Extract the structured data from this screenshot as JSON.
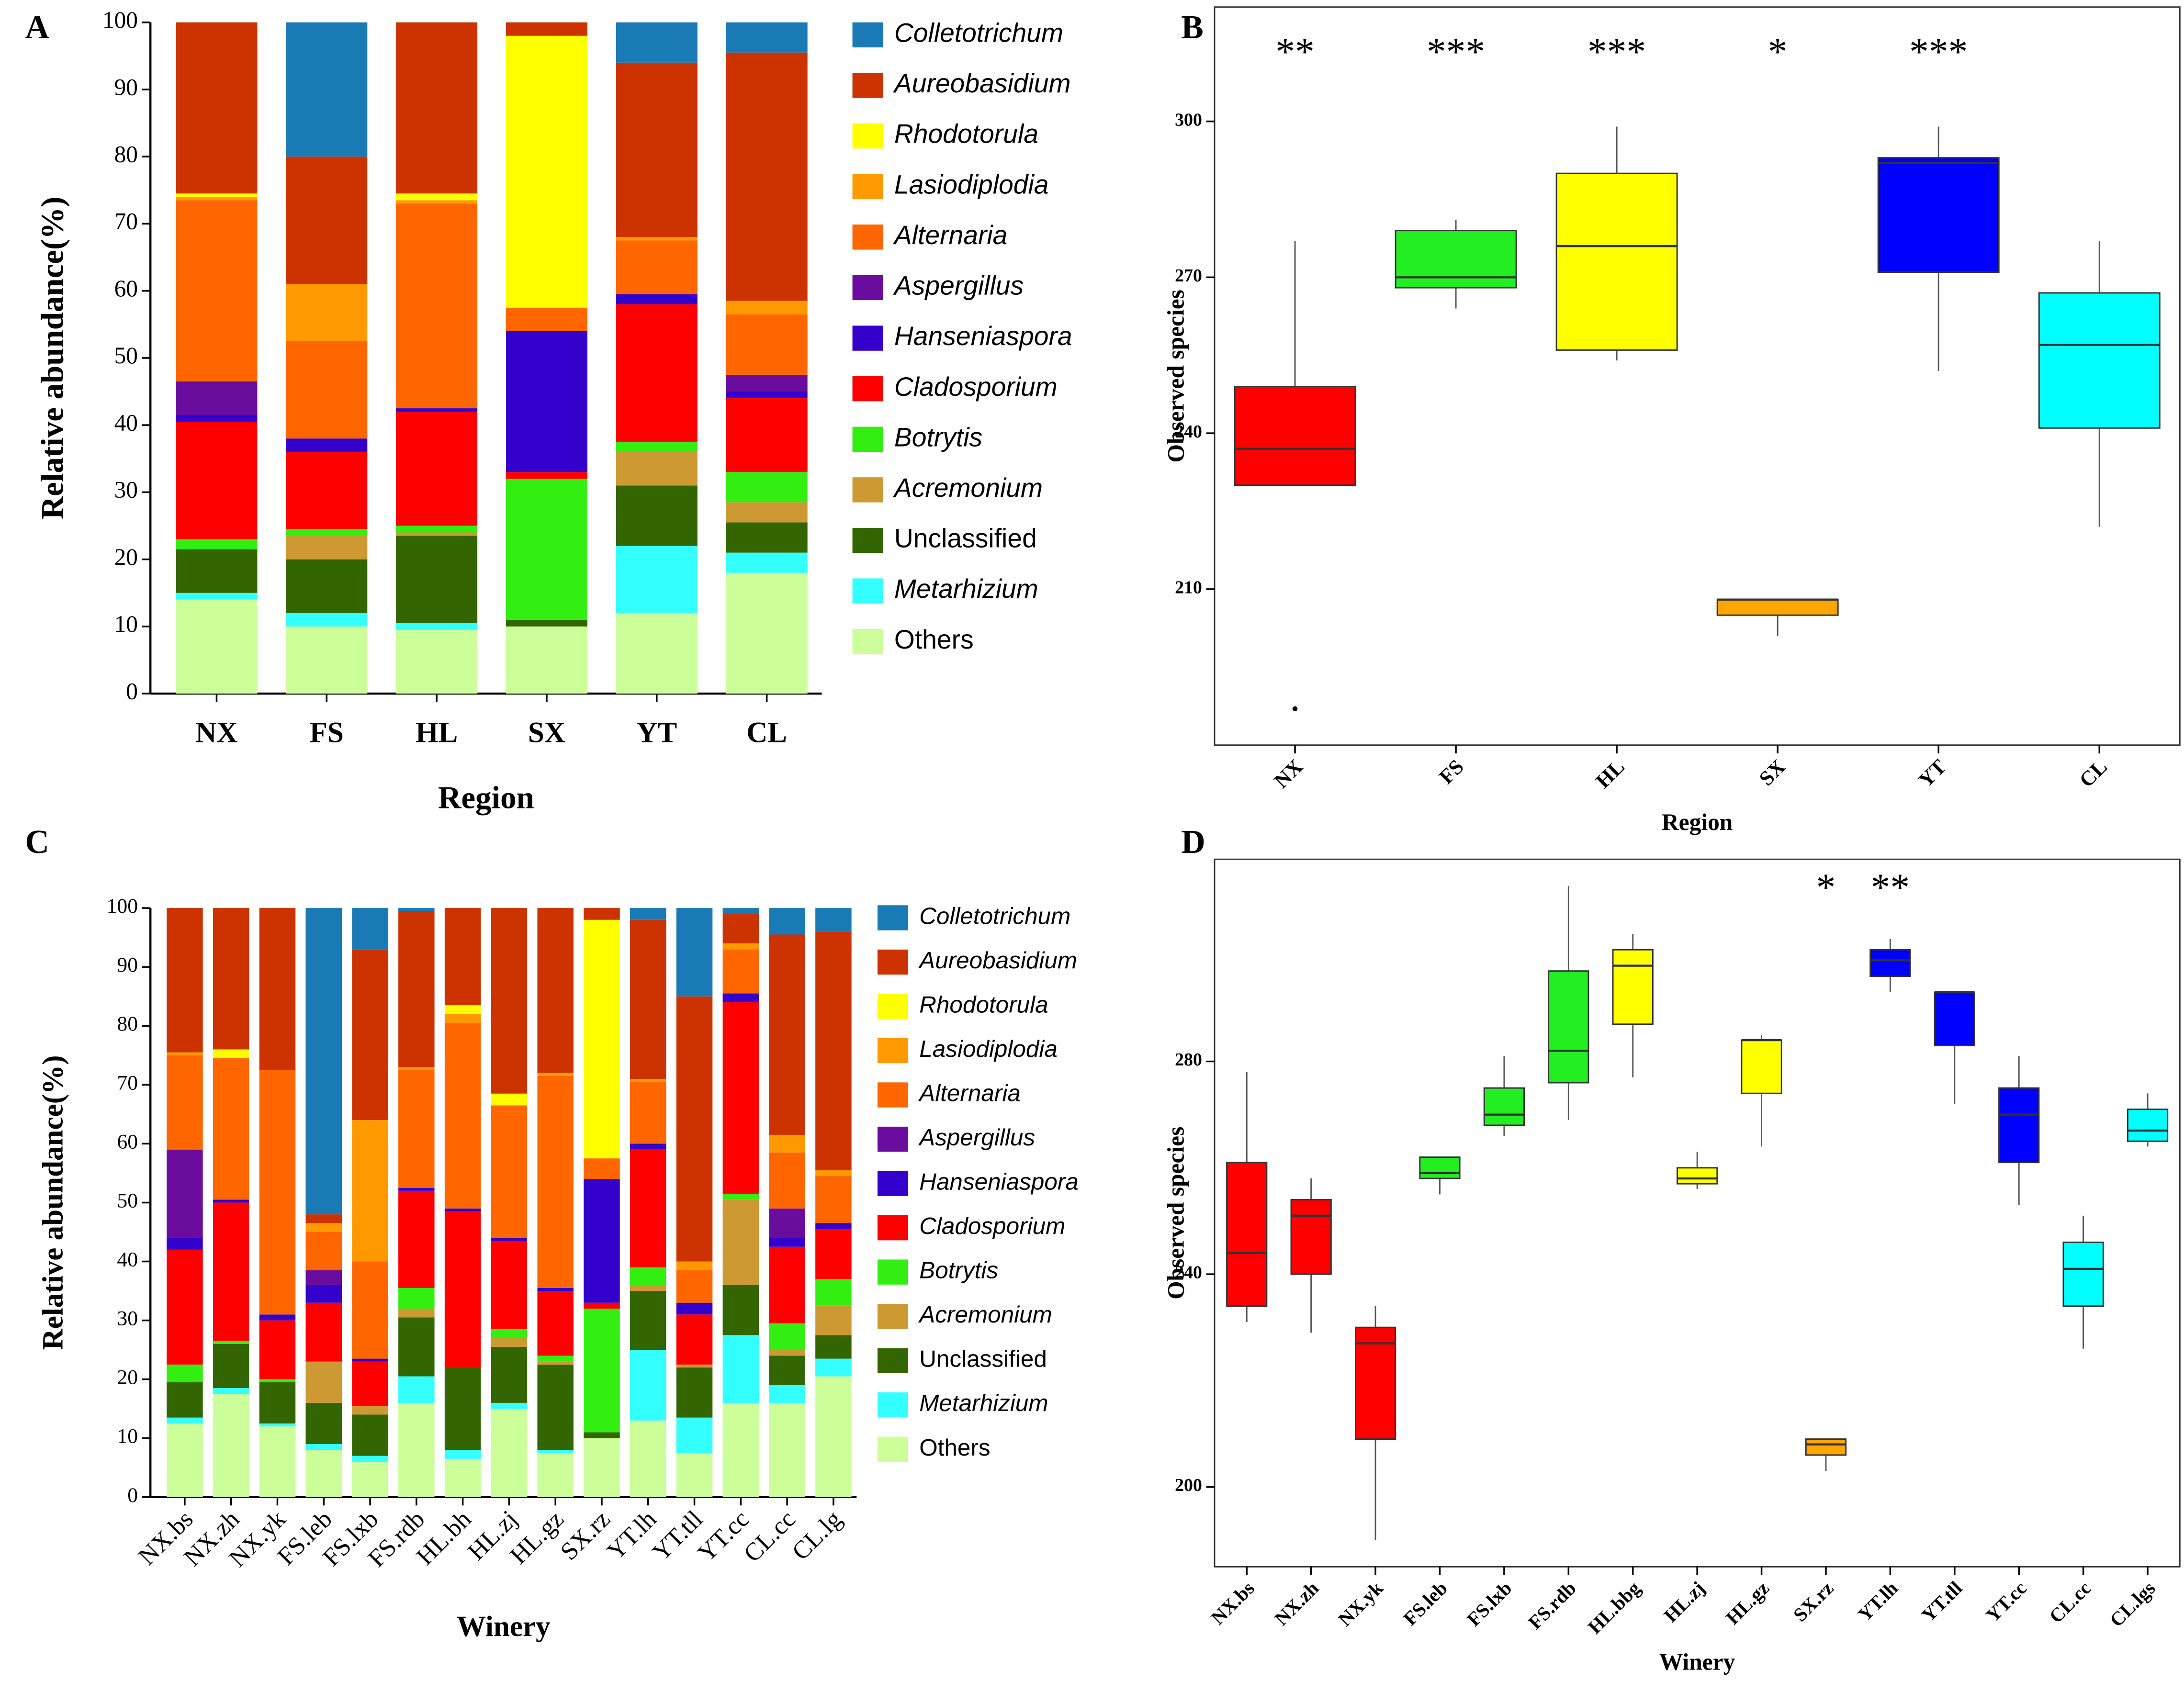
{
  "chart_data": [
    {
      "type": "stacked_bar",
      "label": "A",
      "ylabel": "Relative abundance(%)",
      "xlabel": "Region",
      "categories": [
        "NX",
        "FS",
        "HL",
        "SX",
        "YT",
        "CL"
      ],
      "ylim": [
        0,
        100
      ],
      "yticks": [
        0,
        10,
        20,
        30,
        40,
        50,
        60,
        70,
        80,
        90,
        100
      ],
      "series": [
        {
          "name": "Colletotrichum",
          "italic": true,
          "color": "#1a7ab5",
          "values": [
            0,
            20,
            0,
            0,
            6,
            4.5
          ]
        },
        {
          "name": "Aureobasidium",
          "italic": true,
          "color": "#cc3300",
          "values": [
            25.5,
            19,
            25.5,
            2,
            26,
            37
          ]
        },
        {
          "name": "Rhodotorula",
          "italic": true,
          "color": "#ffff00",
          "values": [
            0.5,
            0,
            1,
            40.5,
            0,
            0
          ]
        },
        {
          "name": "Lasiodiplodia",
          "italic": true,
          "color": "#ff9900",
          "values": [
            0.5,
            8.5,
            0.5,
            0,
            0.5,
            2
          ]
        },
        {
          "name": "Alternaria",
          "italic": true,
          "color": "#ff6600",
          "values": [
            27,
            14.5,
            30.5,
            3.5,
            8,
            9
          ]
        },
        {
          "name": "Aspergillus",
          "italic": true,
          "color": "#6a0d9e",
          "values": [
            5,
            0,
            0,
            0,
            0,
            2.5
          ]
        },
        {
          "name": "Hanseniaspora",
          "italic": true,
          "color": "#3300cc",
          "values": [
            1,
            2,
            0.5,
            21,
            1.5,
            1
          ]
        },
        {
          "name": "Cladosporium",
          "italic": true,
          "color": "#ff0000",
          "values": [
            17.5,
            11.5,
            17,
            1,
            20.5,
            11
          ]
        },
        {
          "name": "Botrytis",
          "italic": true,
          "color": "#33ee11",
          "values": [
            1.5,
            1,
            1,
            21,
            1.5,
            4.5
          ]
        },
        {
          "name": "Acremonium",
          "italic": true,
          "color": "#cc9933",
          "values": [
            0,
            3.5,
            0.5,
            0,
            5,
            3
          ]
        },
        {
          "name": "Unclassified",
          "italic": false,
          "color": "#336600",
          "values": [
            6.5,
            8,
            13,
            1,
            9,
            4.5
          ]
        },
        {
          "name": "Metarhizium",
          "italic": true,
          "color": "#33ffff",
          "values": [
            1,
            2,
            1,
            0,
            10,
            3
          ]
        },
        {
          "name": "Others",
          "italic": false,
          "color": "#ccff99",
          "values": [
            14,
            10,
            9.5,
            10,
            12,
            18
          ]
        }
      ]
    },
    {
      "type": "box",
      "label": "B",
      "ylabel": "Observed species",
      "xlabel": "Region",
      "categories": [
        "NX",
        "FS",
        "HL",
        "SX",
        "YT",
        "CL"
      ],
      "ylim": [
        180,
        322
      ],
      "yticks": [
        210,
        240,
        270,
        300
      ],
      "colors": [
        "#ff0000",
        "#22ee22",
        "#ffff00",
        "#ffa500",
        "#0000ff",
        "#00ffff"
      ],
      "boxes": [
        {
          "min": 230,
          "q1": 230,
          "median": 237,
          "q3": 249,
          "max": 277,
          "outliers": [
            187
          ]
        },
        {
          "min": 264,
          "q1": 268,
          "median": 270,
          "q3": 279,
          "max": 281,
          "outliers": []
        },
        {
          "min": 254,
          "q1": 256,
          "median": 276,
          "q3": 290,
          "max": 299,
          "outliers": []
        },
        {
          "min": 201,
          "q1": 205,
          "median": 208,
          "q3": 208,
          "max": 208,
          "outliers": []
        },
        {
          "min": 252,
          "q1": 271,
          "median": 292,
          "q3": 293,
          "max": 299,
          "outliers": []
        },
        {
          "min": 222,
          "q1": 241,
          "median": 257,
          "q3": 267,
          "max": 277,
          "outliers": []
        }
      ],
      "annotations": [
        {
          "text": "**",
          "category": "NX"
        },
        {
          "text": "***",
          "category": "FS"
        },
        {
          "text": "***",
          "category": "HL"
        },
        {
          "text": "*",
          "category": "SX"
        },
        {
          "text": "***",
          "category": "YT"
        }
      ]
    },
    {
      "type": "stacked_bar",
      "label": "C",
      "ylabel": "Relative abundance(%)",
      "xlabel": "Winery",
      "categories": [
        "NX.bs",
        "NX.zh",
        "NX.yk",
        "FS.leb",
        "FS.lxb",
        "FS.rdb",
        "HL.bh",
        "HL.zj",
        "HL.gz",
        "SX.rz",
        "YT.lh",
        "YT.tll",
        "YT.cc",
        "CL.cc",
        "CL.lg"
      ],
      "ylim": [
        0,
        100
      ],
      "yticks": [
        0,
        10,
        20,
        30,
        40,
        50,
        60,
        70,
        80,
        90,
        100
      ],
      "series": [
        {
          "name": "Colletotrichum",
          "italic": true,
          "color": "#1a7ab5",
          "values": [
            0,
            0,
            0,
            52,
            7,
            0.5,
            0,
            0,
            0,
            0,
            2,
            15,
            1,
            4.5,
            4
          ]
        },
        {
          "name": "Aureobasidium",
          "italic": true,
          "color": "#cc3300",
          "values": [
            24.5,
            24,
            27.5,
            1.5,
            29,
            26.5,
            16.5,
            31.5,
            28,
            2,
            27,
            45,
            5,
            34,
            40.5
          ]
        },
        {
          "name": "Rhodotorula",
          "italic": true,
          "color": "#ffff00",
          "values": [
            0,
            1.5,
            0,
            0,
            0,
            0,
            1.5,
            2,
            0,
            40.5,
            0,
            0,
            0,
            0,
            0
          ]
        },
        {
          "name": "Lasiodiplodia",
          "italic": true,
          "color": "#ff9900",
          "values": [
            0.5,
            0,
            0,
            1.5,
            24,
            0.5,
            1.5,
            0,
            0.5,
            0,
            0.5,
            1.5,
            1,
            3,
            1
          ]
        },
        {
          "name": "Alternaria",
          "italic": true,
          "color": "#ff6600",
          "values": [
            16,
            24,
            41.5,
            6.5,
            16.5,
            20,
            31.5,
            22.5,
            36,
            3.5,
            10.5,
            5.5,
            7.5,
            9.5,
            8
          ]
        },
        {
          "name": "Aspergillus",
          "italic": true,
          "color": "#6a0d9e",
          "values": [
            15,
            0,
            0,
            2.5,
            0,
            0,
            0,
            0,
            0,
            0,
            0,
            0,
            0,
            5,
            0
          ]
        },
        {
          "name": "Hanseniaspora",
          "italic": true,
          "color": "#3300cc",
          "values": [
            2,
            0.5,
            1,
            3,
            0.5,
            0.5,
            0.5,
            0.5,
            0.5,
            21,
            1,
            2,
            1.5,
            1.5,
            1
          ]
        },
        {
          "name": "Cladosporium",
          "italic": true,
          "color": "#ff0000",
          "values": [
            19.5,
            23.5,
            10,
            10,
            7.5,
            16.5,
            26.5,
            15,
            11,
            1,
            20,
            8.5,
            32.5,
            13,
            8.5
          ]
        },
        {
          "name": "Botrytis",
          "italic": true,
          "color": "#33ee11",
          "values": [
            3,
            0.5,
            0.5,
            0,
            0,
            3.5,
            0,
            1.5,
            1,
            21,
            3,
            0,
            1,
            4.5,
            4.5
          ]
        },
        {
          "name": "Acremonium",
          "italic": true,
          "color": "#cc9933",
          "values": [
            0,
            0,
            0,
            7,
            1.5,
            1.5,
            0,
            1.5,
            0.5,
            0,
            1,
            0.5,
            14.5,
            1,
            5
          ]
        },
        {
          "name": "Unclassified",
          "italic": false,
          "color": "#336600",
          "values": [
            6,
            7.5,
            7,
            7,
            7,
            10,
            14,
            9.5,
            14.5,
            1,
            10,
            8.5,
            8.5,
            5,
            4
          ]
        },
        {
          "name": "Metarhizium",
          "italic": true,
          "color": "#33ffff",
          "values": [
            1,
            1,
            0.5,
            1,
            1,
            4.5,
            1.5,
            1,
            0.5,
            0,
            12,
            6,
            11.5,
            3,
            3
          ]
        },
        {
          "name": "Others",
          "italic": false,
          "color": "#ccff99",
          "values": [
            12.5,
            17.5,
            12,
            8,
            6,
            16,
            6.5,
            15,
            7.5,
            10,
            13,
            7.5,
            16,
            16,
            20.5
          ]
        }
      ]
    },
    {
      "type": "box",
      "label": "D",
      "ylabel": "Observed species",
      "xlabel": "Winery",
      "categories": [
        "NX.bs",
        "NX.zh",
        "NX.yk",
        "FS.leb",
        "FS.lxb",
        "FS.rdb",
        "HL.bbg",
        "HL.zj",
        "HL.gz",
        "SX.rz",
        "YT.lh",
        "YT.tll",
        "YT.cc",
        "CL.cc",
        "CL.lgs"
      ],
      "ylim": [
        185,
        318
      ],
      "yticks": [
        200,
        240,
        280
      ],
      "colors": [
        "#ff0000",
        "#ff0000",
        "#ff0000",
        "#22ee22",
        "#22ee22",
        "#22ee22",
        "#ffff00",
        "#ffff00",
        "#ffff00",
        "#ffa500",
        "#0000ff",
        "#0000ff",
        "#0000ff",
        "#00ffff",
        "#00ffff"
      ],
      "boxes": [
        {
          "min": 231,
          "q1": 234,
          "median": 244,
          "q3": 261,
          "max": 278,
          "outliers": []
        },
        {
          "min": 229,
          "q1": 240,
          "median": 251,
          "q3": 254,
          "max": 258,
          "outliers": []
        },
        {
          "min": 190,
          "q1": 209,
          "median": 227,
          "q3": 230,
          "max": 234,
          "outliers": []
        },
        {
          "min": 255,
          "q1": 258,
          "median": 259,
          "q3": 262,
          "max": 262,
          "outliers": []
        },
        {
          "min": 266,
          "q1": 268,
          "median": 270,
          "q3": 275,
          "max": 281,
          "outliers": []
        },
        {
          "min": 269,
          "q1": 276,
          "median": 282,
          "q3": 297,
          "max": 313,
          "outliers": []
        },
        {
          "min": 277,
          "q1": 287,
          "median": 298,
          "q3": 301,
          "max": 304,
          "outliers": []
        },
        {
          "min": 256,
          "q1": 257,
          "median": 258,
          "q3": 260,
          "max": 263,
          "outliers": []
        },
        {
          "min": 264,
          "q1": 274,
          "median": 284,
          "q3": 284,
          "max": 285,
          "outliers": []
        },
        {
          "min": 203,
          "q1": 206,
          "median": 208,
          "q3": 209,
          "max": 209,
          "outliers": []
        },
        {
          "min": 293,
          "q1": 296,
          "median": 299,
          "q3": 301,
          "max": 303,
          "outliers": []
        },
        {
          "min": 272,
          "q1": 283,
          "median": 293,
          "q3": 293,
          "max": 293,
          "outliers": []
        },
        {
          "min": 253,
          "q1": 261,
          "median": 270,
          "q3": 275,
          "max": 281,
          "outliers": []
        },
        {
          "min": 226,
          "q1": 234,
          "median": 241,
          "q3": 246,
          "max": 251,
          "outliers": []
        },
        {
          "min": 264,
          "q1": 265,
          "median": 267,
          "q3": 271,
          "max": 274,
          "outliers": []
        }
      ],
      "annotations": [
        {
          "text": "*",
          "category": "SX.rz"
        },
        {
          "text": "**",
          "category": "YT.lh"
        }
      ]
    }
  ]
}
